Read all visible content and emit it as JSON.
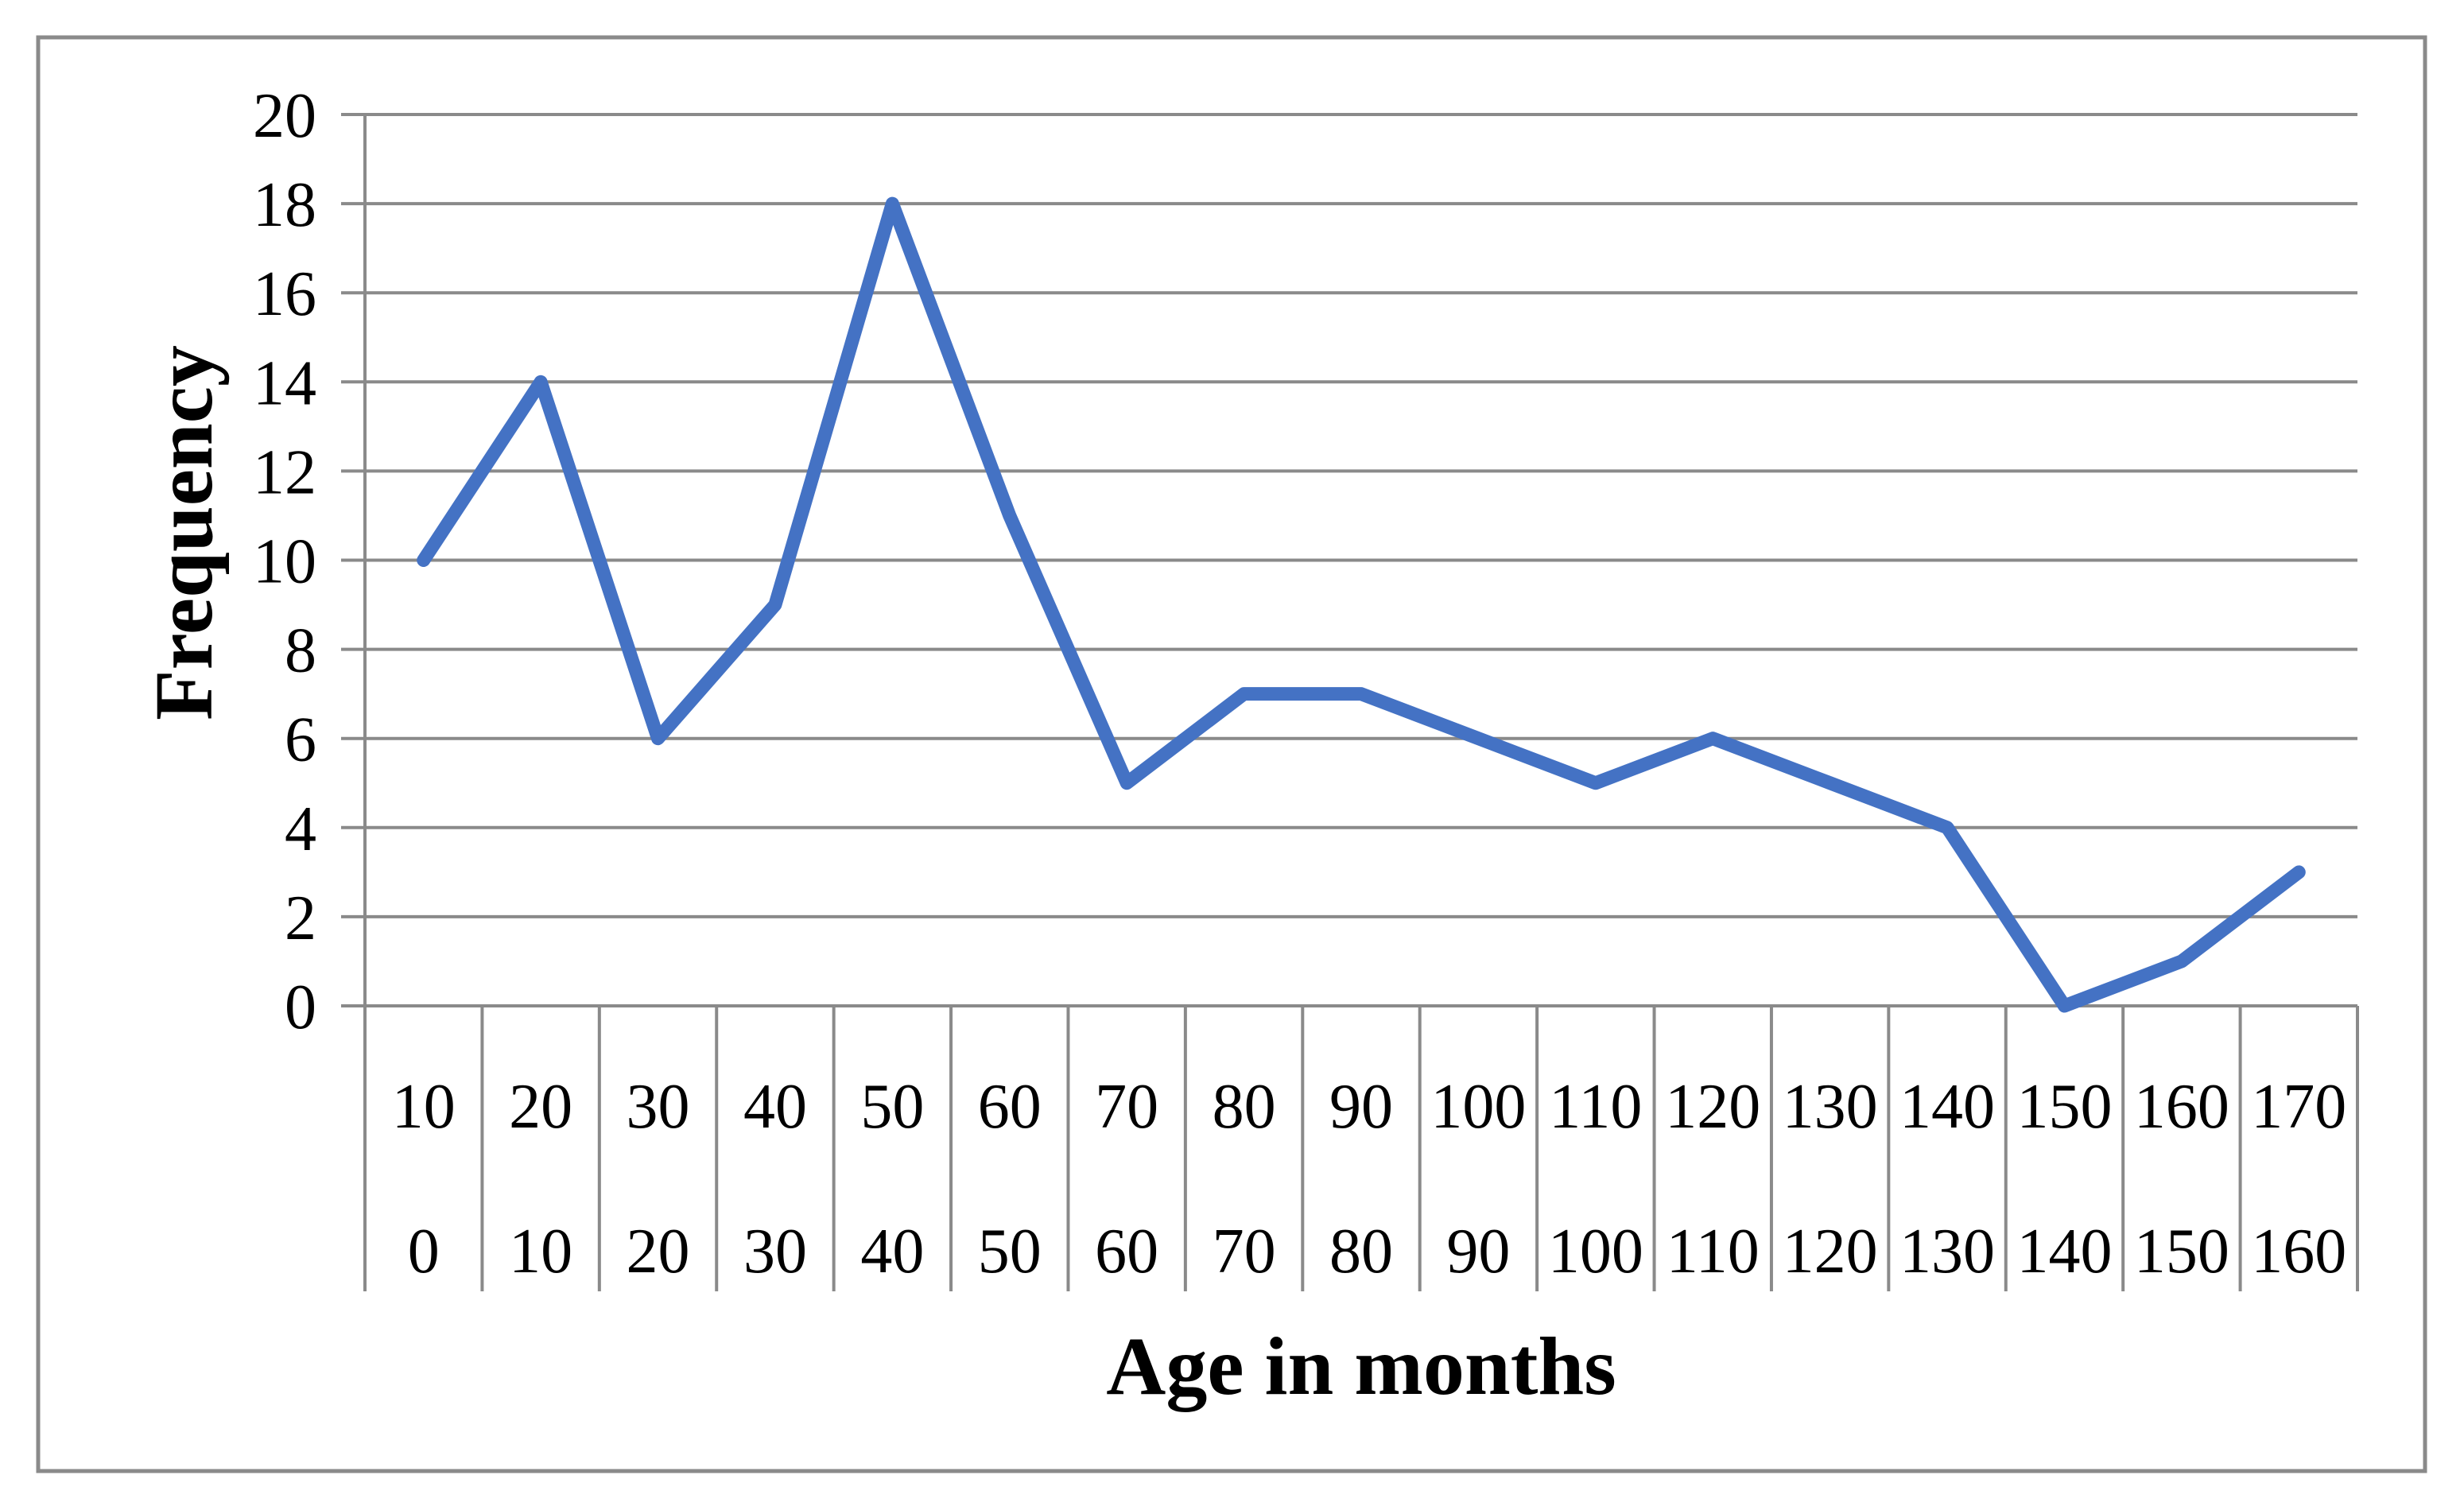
{
  "figure": {
    "background": "#ffffff",
    "border_color": "#8a8a8a"
  },
  "chart_data": {
    "type": "line",
    "title": "",
    "xlabel": "Age in months",
    "ylabel": "Frequency",
    "x_tick_rows": {
      "upper": [
        "10",
        "20",
        "30",
        "40",
        "50",
        "60",
        "70",
        "80",
        "90",
        "100",
        "110",
        "120",
        "130",
        "140",
        "150",
        "160",
        "170"
      ],
      "lower": [
        "0",
        "10",
        "20",
        "30",
        "40",
        "50",
        "60",
        "70",
        "80",
        "90",
        "100",
        "110",
        "120",
        "130",
        "140",
        "150",
        "160"
      ]
    },
    "bin_ranges": [
      "0-10",
      "10-20",
      "20-30",
      "30-40",
      "40-50",
      "50-60",
      "60-70",
      "70-80",
      "80-90",
      "90-100",
      "100-110",
      "110-120",
      "120-130",
      "130-140",
      "140-150",
      "150-160",
      "160-170"
    ],
    "values": [
      10,
      14,
      6,
      9,
      18,
      11,
      5,
      7,
      7,
      6,
      5,
      6,
      5,
      4,
      0,
      1,
      3
    ],
    "yticks": [
      0,
      2,
      4,
      6,
      8,
      10,
      12,
      14,
      16,
      18,
      20
    ],
    "ylim": [
      0,
      20
    ],
    "grid": true,
    "legend": false,
    "line_color": "#4472C4",
    "grid_color": "#8a8a8a"
  }
}
